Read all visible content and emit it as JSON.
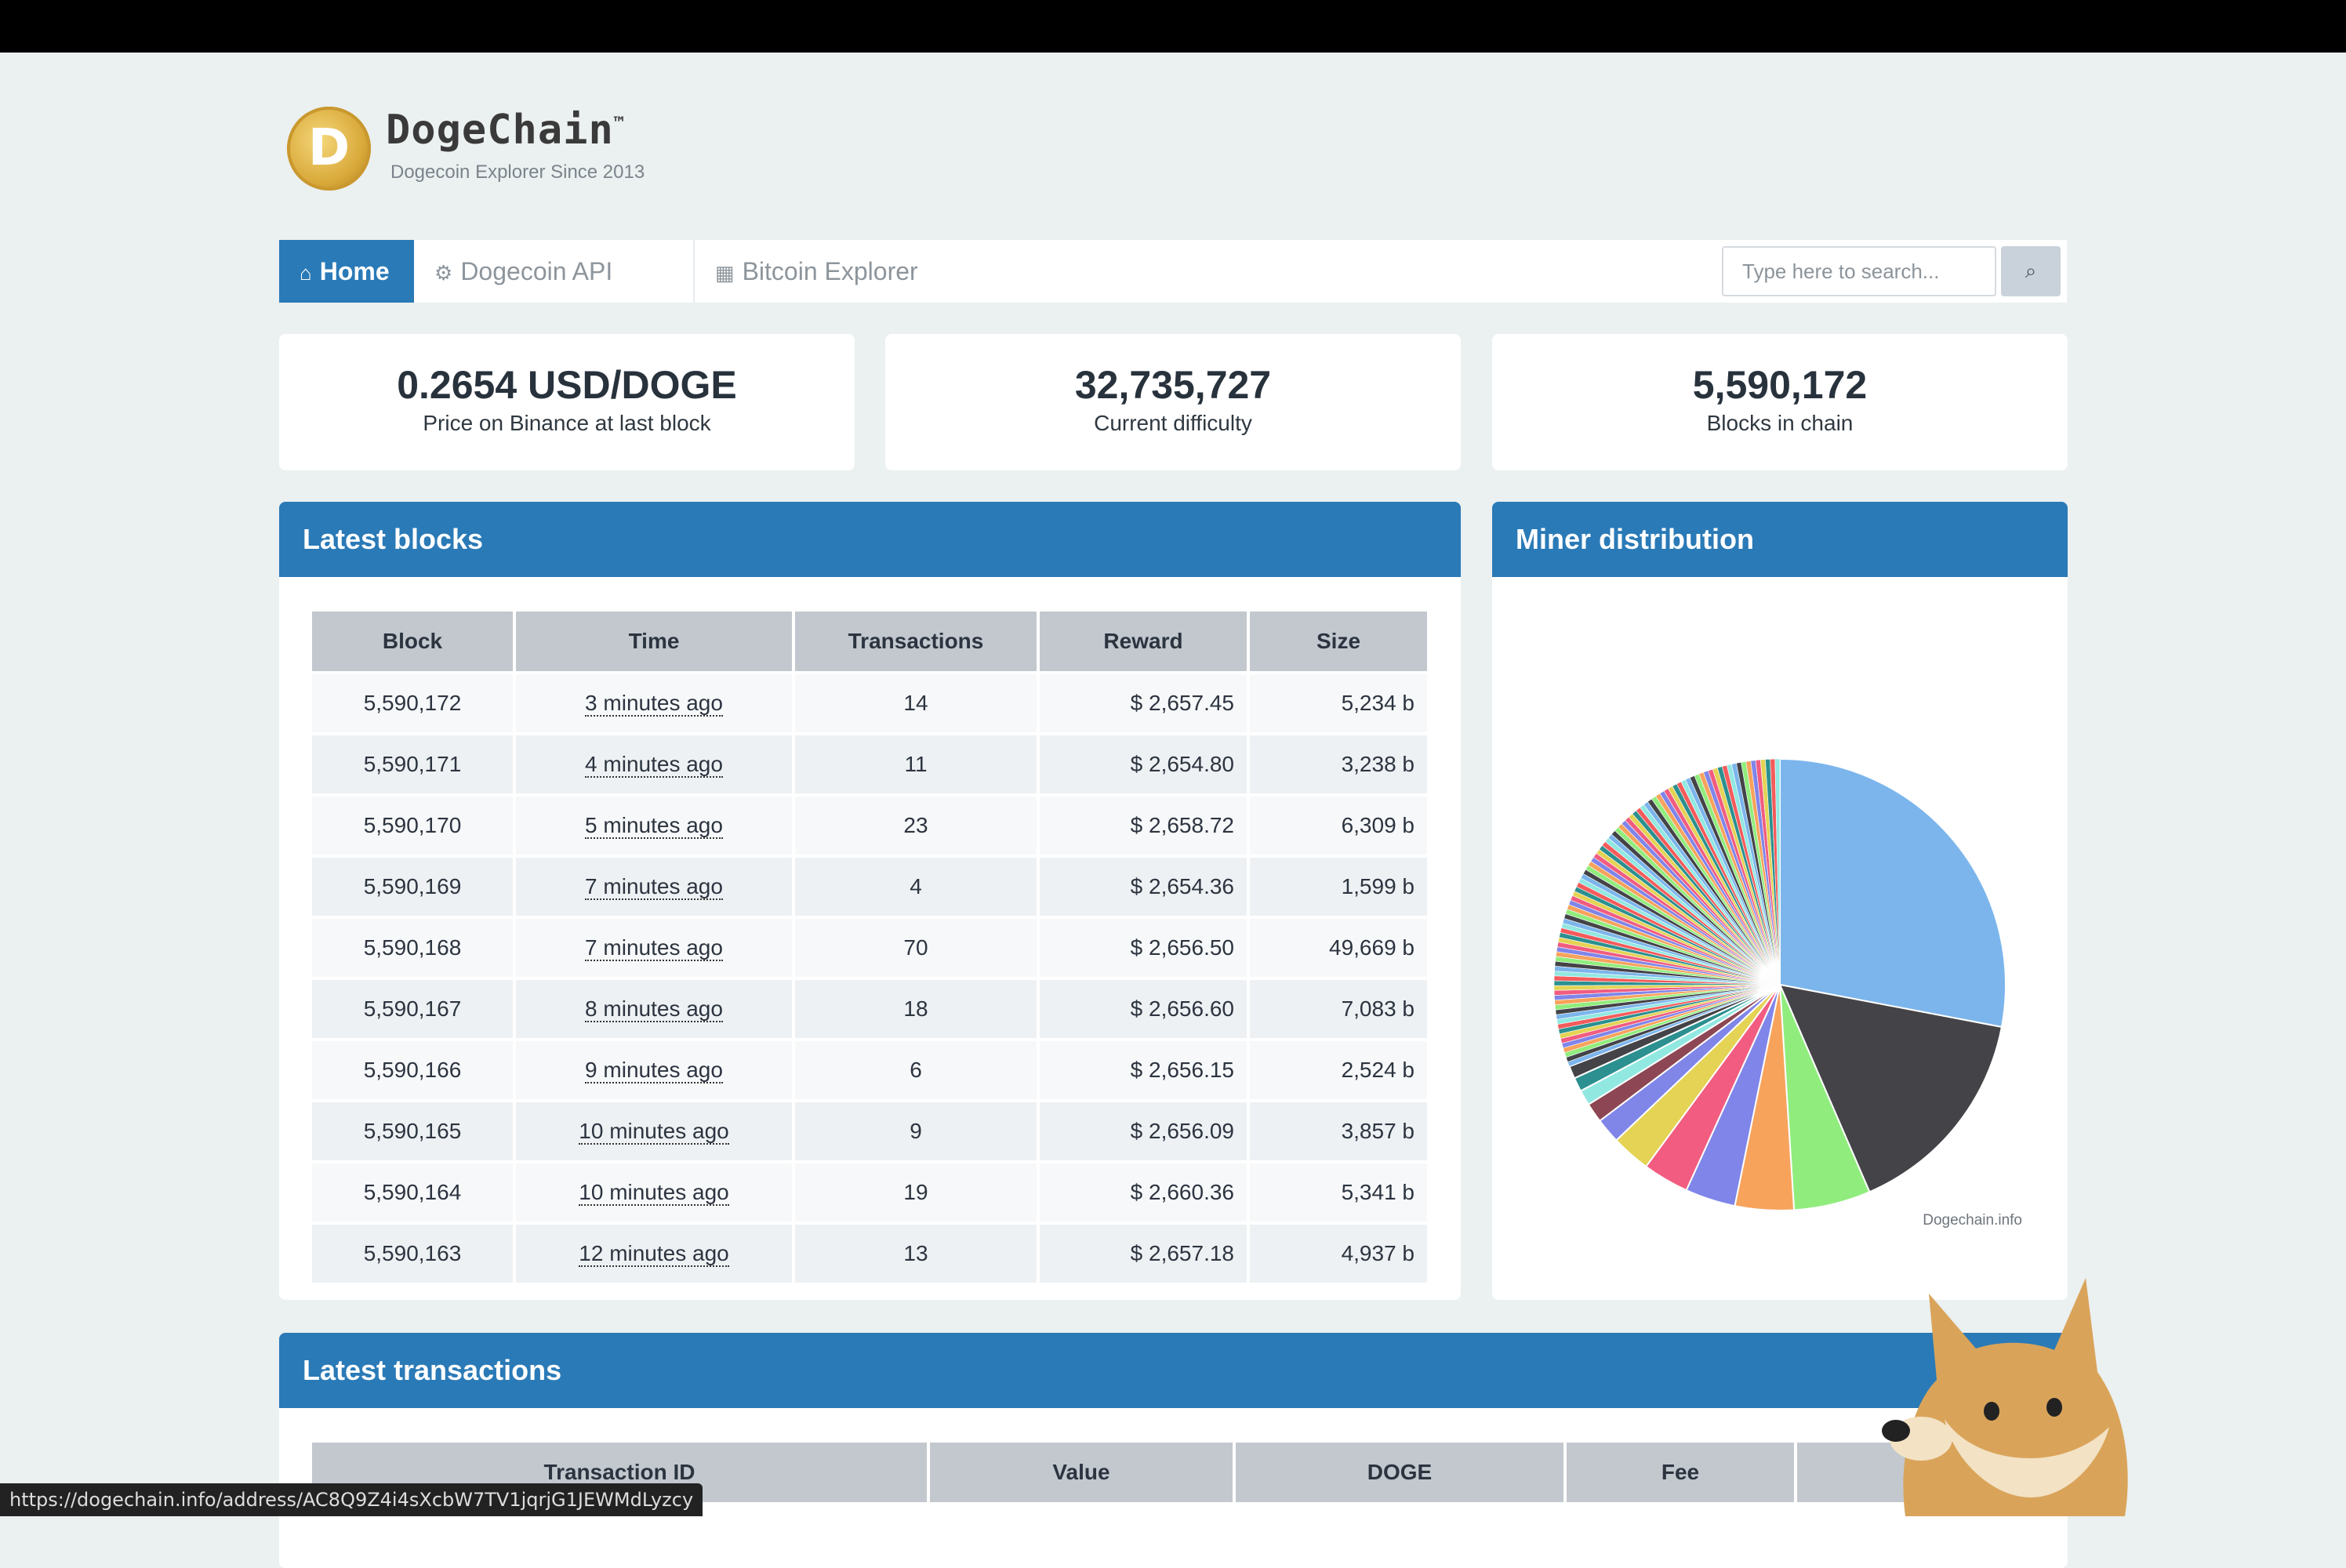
{
  "brand": {
    "name": "DogeChain",
    "tm": "™",
    "tagline": "Dogecoin Explorer Since 2013",
    "logo_letter": "D"
  },
  "nav": {
    "items": [
      {
        "label": "Home",
        "icon": "home-icon",
        "active": true
      },
      {
        "label": "Dogecoin API",
        "icon": "gears-icon"
      },
      {
        "label": "Bitcoin Explorer",
        "icon": "calculator-icon"
      }
    ],
    "search_placeholder": "Type here to search..."
  },
  "stats": [
    {
      "value": "0.2654 USD/DOGE",
      "label": "Price on Binance at last block"
    },
    {
      "value": "32,735,727",
      "label": "Current difficulty"
    },
    {
      "value": "5,590,172",
      "label": "Blocks in chain"
    }
  ],
  "latest_blocks": {
    "title": "Latest blocks",
    "columns": [
      "Block",
      "Time",
      "Transactions",
      "Reward",
      "Size"
    ],
    "rows": [
      [
        "5,590,172",
        "3 minutes ago",
        "14",
        "$ 2,657.45",
        "5,234 b"
      ],
      [
        "5,590,171",
        "4 minutes ago",
        "11",
        "$ 2,654.80",
        "3,238 b"
      ],
      [
        "5,590,170",
        "5 minutes ago",
        "23",
        "$ 2,658.72",
        "6,309 b"
      ],
      [
        "5,590,169",
        "7 minutes ago",
        "4",
        "$ 2,654.36",
        "1,599 b"
      ],
      [
        "5,590,168",
        "7 minutes ago",
        "70",
        "$ 2,656.50",
        "49,669 b"
      ],
      [
        "5,590,167",
        "8 minutes ago",
        "18",
        "$ 2,656.60",
        "7,083 b"
      ],
      [
        "5,590,166",
        "9 minutes ago",
        "6",
        "$ 2,656.15",
        "2,524 b"
      ],
      [
        "5,590,165",
        "10 minutes ago",
        "9",
        "$ 2,656.09",
        "3,857 b"
      ],
      [
        "5,590,164",
        "10 minutes ago",
        "19",
        "$ 2,660.36",
        "5,341 b"
      ],
      [
        "5,590,163",
        "12 minutes ago",
        "13",
        "$ 2,657.18",
        "4,937 b"
      ]
    ]
  },
  "miner_distribution": {
    "title": "Miner distribution",
    "credit": "Dogechain.info"
  },
  "chart_data": {
    "type": "pie",
    "title": "",
    "values": [
      28.0,
      15.5,
      5.5,
      4.2,
      3.6,
      3.3,
      2.8,
      1.8,
      1.4,
      1.1,
      1.0,
      0.9
    ],
    "colors": [
      "#7cb5ec",
      "#434348",
      "#90ed7d",
      "#f7a35c",
      "#8085e9",
      "#f15c80",
      "#e4d354",
      "#8085e8",
      "#8d4653",
      "#91e8e1",
      "#2b908f",
      "#434348"
    ],
    "small_slices_count": 90
  },
  "latest_transactions": {
    "title": "Latest transactions",
    "columns": [
      "Transaction ID",
      "Value",
      "DOGE",
      "Fee",
      ""
    ]
  },
  "status_url": "https://dogechain.info/address/AC8Q9Z4i4sXcbW7TV1jqrjG1JEWMdLyzcy"
}
